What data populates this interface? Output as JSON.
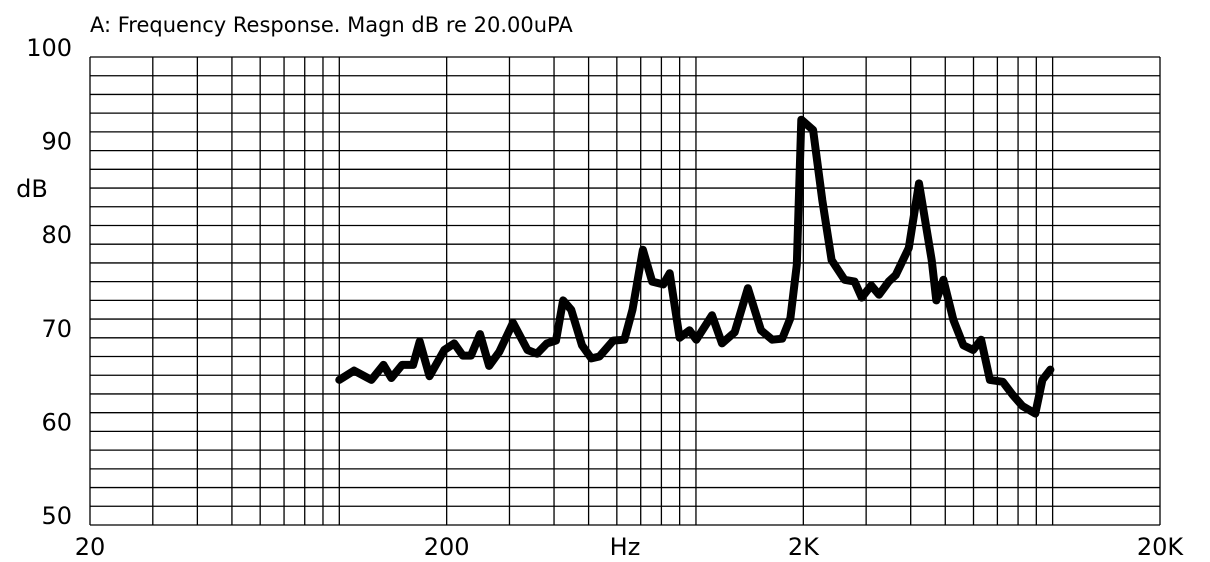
{
  "chart_data": {
    "type": "line",
    "title": "A: Frequency Response. Magn dB re 20.00uPA",
    "y_label": "dB",
    "x_label": "Hz",
    "log_x": true,
    "grid": true,
    "xlim": [
      20,
      20000
    ],
    "xticks": [
      20,
      200,
      {
        "value": 2000,
        "label": "2K"
      },
      {
        "value": 20000,
        "label": "20K"
      }
    ],
    "minor_xticks": [
      30,
      40,
      50,
      60,
      70,
      80,
      90,
      100,
      300,
      400,
      500,
      600,
      700,
      800,
      900,
      1000,
      3000,
      4000,
      5000,
      6000,
      7000,
      8000,
      9000,
      10000
    ],
    "ylim": [
      50,
      100
    ],
    "yticks": [
      50,
      60,
      70,
      80,
      90,
      100
    ],
    "minor_yticks": [
      52,
      54,
      56,
      58,
      62,
      64,
      66,
      68,
      72,
      74,
      76,
      78,
      82,
      84,
      86,
      88,
      92,
      94,
      96,
      98
    ],
    "series": [
      {
        "color": "#000000",
        "x": [
          100,
          110,
          123,
          133,
          140,
          150,
          161,
          168,
          179,
          197,
          210,
          222,
          234,
          248,
          263,
          281,
          307,
          337,
          358,
          382,
          405,
          424,
          447,
          479,
          509,
          536,
          586,
          630,
          664,
          710,
          754,
          810,
          844,
          900,
          959,
          1002,
          1109,
          1183,
          1284,
          1398,
          1522,
          1636,
          1745,
          1840,
          1918,
          1974,
          2130,
          2260,
          2400,
          2610,
          2785,
          2915,
          3100,
          3260,
          3470,
          3630,
          3950,
          4220,
          4580,
          4720,
          4940,
          5270,
          5620,
          5990,
          6300,
          6670,
          7250,
          7730,
          8230,
          8940,
          9360,
          9860
        ],
        "values": [
          65.5,
          66.5,
          65.5,
          67.1,
          65.7,
          67.1,
          67.1,
          69.6,
          65.9,
          68.7,
          69.4,
          68.1,
          68.1,
          70.4,
          67.0,
          68.5,
          71.6,
          68.7,
          68.3,
          69.4,
          69.7,
          74.0,
          73.0,
          69.2,
          67.8,
          68.0,
          69.7,
          69.8,
          73.0,
          79.4,
          76.0,
          75.7,
          76.9,
          70.0,
          70.8,
          69.8,
          72.4,
          69.4,
          70.6,
          75.3,
          70.8,
          69.8,
          69.9,
          72.1,
          77.8,
          93.3,
          92.2,
          84.7,
          78.3,
          76.2,
          76.0,
          74.3,
          75.6,
          74.6,
          76.0,
          76.7,
          79.6,
          86.5,
          78.3,
          74.0,
          76.2,
          71.9,
          69.2,
          68.7,
          69.8,
          65.5,
          65.3,
          63.9,
          62.7,
          61.9,
          65.5,
          66.6
        ]
      }
    ]
  }
}
